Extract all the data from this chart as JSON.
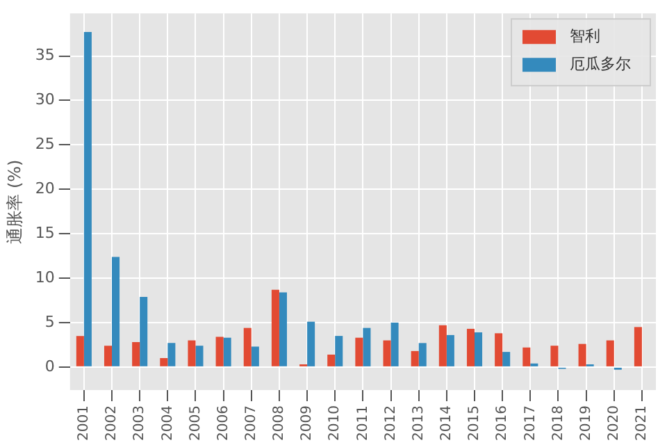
{
  "chart_data": {
    "type": "bar",
    "ylabel": "通胀率 (%)",
    "categories": [
      "2001",
      "2002",
      "2003",
      "2004",
      "2005",
      "2006",
      "2007",
      "2008",
      "2009",
      "2010",
      "2011",
      "2012",
      "2013",
      "2014",
      "2015",
      "2016",
      "2017",
      "2018",
      "2019",
      "2020",
      "2021"
    ],
    "series": [
      {
        "name": "智利",
        "color": "#e24a33",
        "values": [
          3.5,
          2.4,
          2.8,
          1.0,
          3.0,
          3.4,
          4.4,
          8.7,
          0.3,
          1.4,
          3.3,
          3.0,
          1.8,
          4.7,
          4.3,
          3.8,
          2.2,
          2.4,
          2.6,
          3.0,
          4.5
        ]
      },
      {
        "name": "厄瓜多尔",
        "color": "#348abd",
        "values": [
          37.7,
          12.4,
          7.9,
          2.7,
          2.4,
          3.3,
          2.3,
          8.4,
          5.1,
          3.5,
          4.4,
          5.0,
          2.7,
          3.6,
          3.9,
          1.7,
          0.4,
          -0.2,
          0.3,
          -0.3,
          null
        ]
      }
    ],
    "ylim": [
      -2.6,
      39.8
    ],
    "yticks": [
      0,
      5,
      10,
      15,
      20,
      25,
      30,
      35
    ],
    "grid": true,
    "legend": "top right"
  }
}
